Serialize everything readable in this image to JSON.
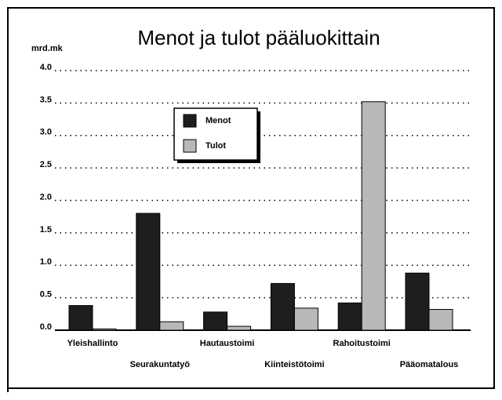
{
  "chart_data": {
    "type": "bar",
    "title": "Menot ja tulot pääluokittain",
    "y_label": "mrd.mk",
    "categories": [
      "Yleishallinto",
      "Seurakuntatyö",
      "Hautaustoimi",
      "Kiinteistötoimi",
      "Rahoitustoimi",
      "Pääomatalous"
    ],
    "series": [
      {
        "name": "Menot",
        "color": "#1e1e1e",
        "values": [
          0.38,
          1.8,
          0.28,
          0.72,
          0.42,
          0.88
        ]
      },
      {
        "name": "Tulot",
        "color": "#b8b8b8",
        "values": [
          0.02,
          0.13,
          0.06,
          0.34,
          3.52,
          0.32
        ]
      }
    ],
    "ylim": [
      0,
      4
    ],
    "yticks": [
      {
        "value": 0,
        "label": "0.0"
      },
      0.5,
      {
        "value": 1,
        "label": "1.0"
      },
      1.5,
      {
        "value": 2,
        "label": "2.0"
      },
      2.5,
      {
        "value": 3,
        "label": "3.0"
      },
      3.5,
      {
        "value": 4,
        "label": "4.0"
      }
    ],
    "grid": true,
    "legend": "upper center"
  }
}
